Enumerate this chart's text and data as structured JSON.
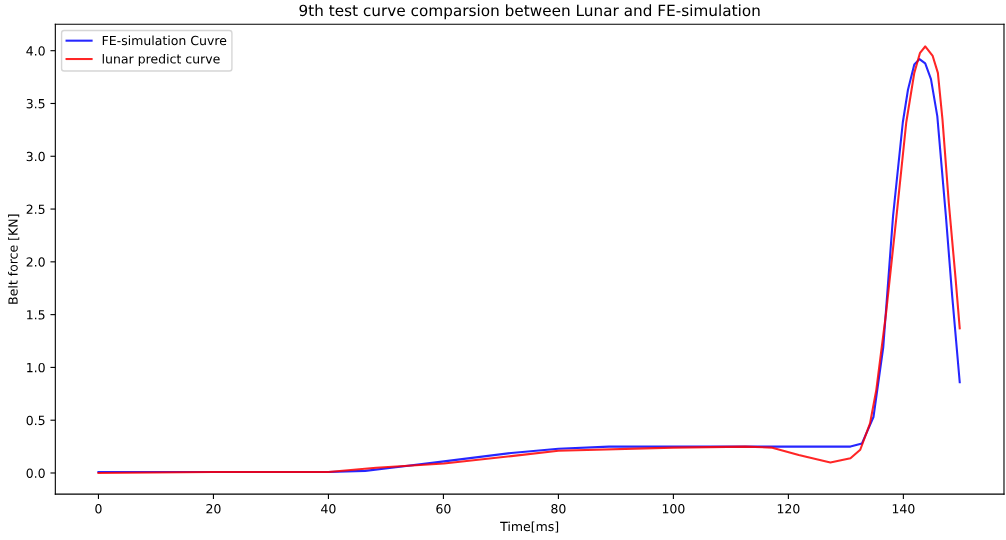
{
  "chart_data": {
    "type": "line",
    "title": "9th test curve comparsion between Lunar and FE-simulation",
    "xlabel": "Time[ms]",
    "ylabel": "Belt force [KN]",
    "xlim": [
      -7.5,
      157.5
    ],
    "ylim": [
      -0.2,
      4.25
    ],
    "xticks": [
      0,
      20,
      40,
      60,
      80,
      100,
      120,
      140
    ],
    "yticks": [
      {
        "value": 0,
        "label": "0.0"
      },
      0.5,
      {
        "value": 1,
        "label": "1.0"
      },
      1.5,
      {
        "value": 2,
        "label": "2.0"
      },
      2.5,
      {
        "value": 3,
        "label": "3.0"
      },
      3.5,
      {
        "value": 4,
        "label": "4.0"
      }
    ],
    "grid": false,
    "legend": "top left",
    "marker": "none",
    "line_style": "solid",
    "series": [
      {
        "name": "FE-simulation Cuvre",
        "color": "#0000ff",
        "x": [
          0,
          20,
          40,
          46.4,
          51,
          60.1,
          71.8,
          80,
          88.8,
          100,
          110,
          120,
          128,
          130.8,
          132.8,
          134.8,
          136.5,
          138.2,
          139.9,
          140.8,
          141.9,
          142.8,
          143.8,
          144.8,
          145.9,
          147.4,
          148.5,
          149.8
        ],
        "values": [
          0.01,
          0.01,
          0.01,
          0.02,
          0.05,
          0.11,
          0.19,
          0.23,
          0.25,
          0.25,
          0.25,
          0.25,
          0.25,
          0.25,
          0.28,
          0.53,
          1.19,
          2.43,
          3.32,
          3.63,
          3.87,
          3.92,
          3.88,
          3.73,
          3.38,
          2.43,
          1.67,
          0.86
        ]
      },
      {
        "name": "lunar predict curve",
        "color": "#ff0000",
        "x": [
          0,
          20,
          40,
          48.3,
          60.1,
          71.8,
          80,
          100,
          112.5,
          117.2,
          121.8,
          127.3,
          130.8,
          132.5,
          134.2,
          135.3,
          137.0,
          138.8,
          140.5,
          141.9,
          142.9,
          143.8,
          145.1,
          146.0,
          146.8,
          147.9,
          149.1,
          149.8
        ],
        "values": [
          0.0,
          0.01,
          0.01,
          0.05,
          0.09,
          0.16,
          0.21,
          0.24,
          0.25,
          0.24,
          0.17,
          0.1,
          0.14,
          0.22,
          0.47,
          0.79,
          1.52,
          2.43,
          3.32,
          3.79,
          3.98,
          4.04,
          3.95,
          3.79,
          3.35,
          2.56,
          1.83,
          1.37
        ]
      }
    ]
  }
}
